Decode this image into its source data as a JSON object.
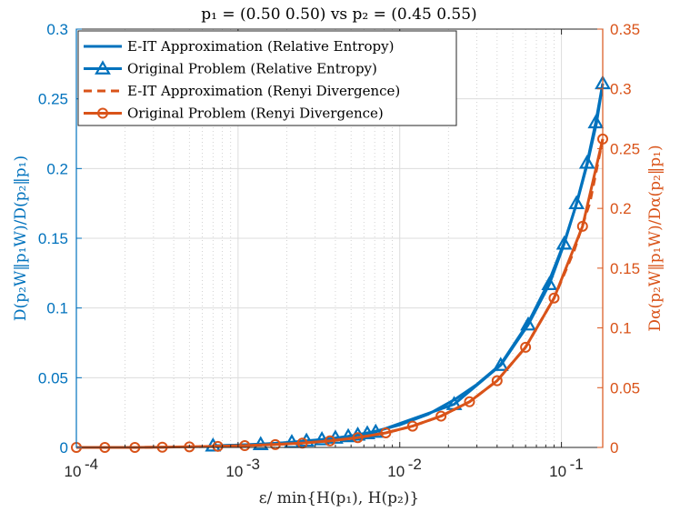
{
  "chart_data": {
    "type": "line",
    "title": "p₁ = (0.50 0.50) vs p₂ = (0.45 0.55)",
    "xlabel": "ε/ min{H(p₁), H(p₂)}",
    "ylabel_left": "D(p₂W‖p₁W)/D(p₂‖p₁)",
    "ylabel_right": "Dα(p₂W‖p₁W)/Dα(p₂‖p₁)",
    "x_scale": "log",
    "xlim": [
      0.0001,
      0.18
    ],
    "ylim_left": [
      0,
      0.3
    ],
    "ylim_right": [
      0,
      0.35
    ],
    "x_ticks": [
      {
        "value": 0.0001,
        "base": "10",
        "exp": "-4"
      },
      {
        "value": 0.001,
        "base": "10",
        "exp": "-3"
      },
      {
        "value": 0.01,
        "base": "10",
        "exp": "-2"
      },
      {
        "value": 0.1,
        "base": "10",
        "exp": "-1"
      }
    ],
    "y_ticks_left": [
      "0",
      "0.05",
      "0.1",
      "0.15",
      "0.2",
      "0.25",
      "0.3"
    ],
    "y_ticks_right": [
      "0",
      "0.05",
      "0.1",
      "0.15",
      "0.2",
      "0.25",
      "0.3",
      "0.35"
    ],
    "grid": true,
    "legend_position": "top-left",
    "colors": {
      "blue": "#0072BD",
      "orange": "#D95319"
    },
    "series": [
      {
        "name": "E-IT Approximation (Relative Entropy)",
        "axis": "left",
        "style": "solid",
        "marker": "none",
        "color": "#0072BD",
        "x": [
          0.0007,
          0.001,
          0.0014,
          0.002,
          0.003,
          0.004,
          0.005,
          0.007,
          0.01,
          0.015,
          0.022,
          0.03,
          0.042,
          0.062,
          0.083,
          0.104,
          0.125,
          0.145,
          0.165,
          0.18
        ],
        "y": [
          0.0012,
          0.0017,
          0.0024,
          0.0034,
          0.005,
          0.0066,
          0.0082,
          0.0114,
          0.0162,
          0.0238,
          0.0345,
          0.0452,
          0.0595,
          0.089,
          0.118,
          0.147,
          0.176,
          0.204,
          0.233,
          0.261
        ]
      },
      {
        "name": "Original Problem (Relative Entropy)",
        "axis": "left",
        "style": "solid",
        "marker": "triangle",
        "color": "#0072BD",
        "x": [
          0.0007,
          0.00138,
          0.00215,
          0.00265,
          0.0033,
          0.004,
          0.0048,
          0.0055,
          0.0063,
          0.0071,
          0.0217,
          0.0421,
          0.0623,
          0.0842,
          0.104,
          0.124,
          0.144,
          0.163,
          0.18
        ],
        "y": [
          0.0012,
          0.0022,
          0.0037,
          0.0047,
          0.0057,
          0.0068,
          0.0079,
          0.009,
          0.01,
          0.0111,
          0.031,
          0.059,
          0.088,
          0.117,
          0.146,
          0.175,
          0.204,
          0.233,
          0.261
        ]
      },
      {
        "name": "E-IT Approximation (Renyi Divergence)",
        "axis": "right",
        "style": "dashed",
        "marker": "none",
        "color": "#D95319",
        "x": [
          0.0001,
          0.00015,
          0.00023,
          0.00034,
          0.0005,
          0.00075,
          0.0011,
          0.0017,
          0.0025,
          0.0037,
          0.0055,
          0.0082,
          0.012,
          0.018,
          0.027,
          0.04,
          0.06,
          0.09,
          0.12,
          0.15,
          0.18
        ],
        "y": [
          0,
          0,
          0,
          0.0002,
          0.0005,
          0.0009,
          0.0015,
          0.0024,
          0.0036,
          0.0055,
          0.0082,
          0.0122,
          0.0178,
          0.0262,
          0.0382,
          0.0558,
          0.0838,
          0.125,
          0.165,
          0.205,
          0.258
        ]
      },
      {
        "name": "Original Problem (Renyi Divergence)",
        "axis": "right",
        "style": "solid",
        "marker": "circle",
        "color": "#D95319",
        "x": [
          0.0001,
          0.00015,
          0.00023,
          0.00034,
          0.0005,
          0.00075,
          0.0011,
          0.0017,
          0.0025,
          0.0037,
          0.0055,
          0.0082,
          0.012,
          0.018,
          0.027,
          0.04,
          0.06,
          0.09,
          0.135,
          0.18
        ],
        "y": [
          0,
          0,
          0,
          0.0002,
          0.0005,
          0.0009,
          0.0015,
          0.0024,
          0.0036,
          0.0055,
          0.0082,
          0.0122,
          0.0178,
          0.0262,
          0.0382,
          0.0558,
          0.0838,
          0.125,
          0.185,
          0.258
        ]
      }
    ]
  }
}
